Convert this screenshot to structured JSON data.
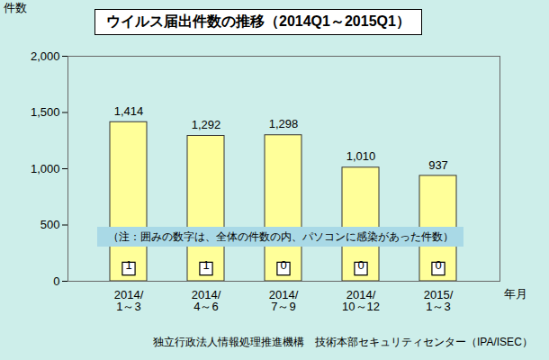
{
  "chart_data": {
    "type": "bar",
    "title": "ウイルス届出件数の推移（2014Q1～2015Q1）",
    "y_label": "件数",
    "x_label": "年月",
    "categories": [
      "2014/1～3",
      "2014/4～6",
      "2014/7～9",
      "2014/10～12",
      "2015/1～3"
    ],
    "values": [
      1414,
      1292,
      1298,
      1010,
      937
    ],
    "value_labels": [
      "1,414",
      "1,292",
      "1,298",
      "1,010",
      "937"
    ],
    "data_labels": true,
    "color": "#ffff99",
    "ylim": [
      0,
      2000
    ],
    "yticks": [
      0,
      500,
      {
        "value": 1000,
        "label": "1,000"
      },
      {
        "value": 1500,
        "label": "1,500"
      },
      {
        "value": 2000,
        "label": "2,000"
      }
    ],
    "grid": false,
    "pc_infection_counts": [
      1,
      1,
      0,
      0,
      0
    ],
    "annotation": "（注：囲みの数字は、全体の件数の内、パソコンに感染があった件数）",
    "source": "独立行政法人情報処理推進機構　技術本部セキュリティセンター（IPA/ISEC）"
  }
}
